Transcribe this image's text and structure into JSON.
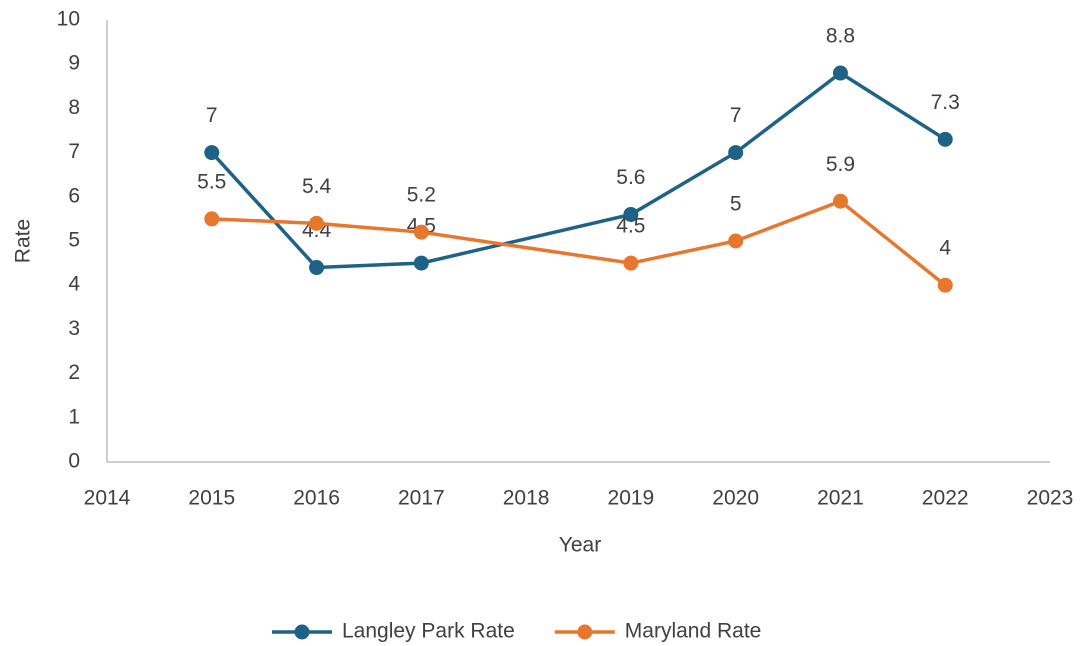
{
  "chart_data": {
    "type": "line",
    "x": [
      2015,
      2016,
      2017,
      2019,
      2020,
      2021,
      2022
    ],
    "series": [
      {
        "name": "Langley Park Rate",
        "color": "#1f6287",
        "values": [
          7,
          4.4,
          4.5,
          5.6,
          7,
          8.8,
          7.3
        ]
      },
      {
        "name": "Maryland Rate",
        "color": "#e8772e",
        "values": [
          5.5,
          5.4,
          5.2,
          4.5,
          5,
          5.9,
          4
        ]
      }
    ],
    "xlabel": "Year",
    "ylabel": "Rate",
    "xlim": [
      2014,
      2023
    ],
    "xticks": [
      2014,
      2015,
      2016,
      2017,
      2018,
      2019,
      2020,
      2021,
      2022,
      2023
    ],
    "ylim": [
      0,
      10
    ],
    "yticks": [
      0,
      1,
      2,
      3,
      4,
      5,
      6,
      7,
      8,
      9,
      10
    ],
    "legend": "bottom"
  }
}
